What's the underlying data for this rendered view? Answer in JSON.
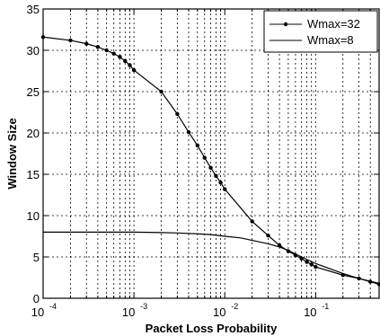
{
  "chart_data": {
    "type": "line",
    "xlabel": "Packet Loss Probability",
    "ylabel": "Window Size",
    "xscale": "log",
    "xlim": [
      0.0001,
      0.5
    ],
    "ylim": [
      0,
      35
    ],
    "yticks": [
      0,
      5,
      10,
      15,
      20,
      25,
      30,
      35
    ],
    "xticks": [
      {
        "value": 0.0001,
        "base": "10",
        "exp": "-4"
      },
      {
        "value": 0.001,
        "base": "10",
        "exp": "-3"
      },
      {
        "value": 0.01,
        "base": "10",
        "exp": "-2"
      },
      {
        "value": 0.1,
        "base": "10",
        "exp": "-1"
      }
    ],
    "grid": true,
    "legend_position": "top-right",
    "series": [
      {
        "name": "Wmax=32",
        "marker": "dot",
        "x": [
          0.0001,
          0.0002,
          0.0003,
          0.0004,
          0.0005,
          0.0006,
          0.0007,
          0.0008,
          0.0009,
          0.001,
          0.002,
          0.003,
          0.004,
          0.005,
          0.006,
          0.007,
          0.008,
          0.009,
          0.01,
          0.02,
          0.03,
          0.04,
          0.05,
          0.06,
          0.07,
          0.08,
          0.09,
          0.1,
          0.2,
          0.3,
          0.4,
          0.5
        ],
        "y": [
          31.6,
          31.2,
          30.8,
          30.4,
          30.0,
          29.6,
          29.2,
          28.7,
          28.2,
          27.6,
          25.0,
          22.3,
          20.1,
          18.5,
          17.0,
          15.8,
          14.8,
          14.0,
          13.2,
          9.3,
          7.6,
          6.4,
          5.7,
          5.2,
          4.8,
          4.4,
          4.1,
          3.8,
          2.8,
          2.4,
          2.0,
          1.7
        ]
      },
      {
        "name": "Wmax=8",
        "marker": "none",
        "x": [
          0.0001,
          0.0003,
          0.001,
          0.002,
          0.003,
          0.005,
          0.007,
          0.01,
          0.015,
          0.02,
          0.03,
          0.04,
          0.05,
          0.07,
          0.1,
          0.2,
          0.3,
          0.5
        ],
        "y": [
          8.0,
          8.0,
          8.0,
          7.95,
          7.9,
          7.8,
          7.7,
          7.5,
          7.3,
          7.0,
          6.6,
          6.2,
          5.8,
          5.0,
          4.2,
          3.0,
          2.4,
          1.8
        ]
      }
    ]
  }
}
